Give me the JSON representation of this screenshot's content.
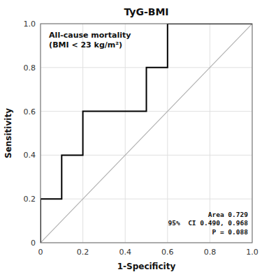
{
  "chart_data": {
    "type": "line",
    "title": "TyG-BMI",
    "x_label": "1-Specificity",
    "y_label": "Sensitivity",
    "series": [
      {
        "x": [
          0.0,
          1.0
        ],
        "values": [
          0.0,
          1.0
        ],
        "color": "#b0b0b0"
      },
      {
        "x": [
          0.0,
          0.0,
          0.1,
          0.1,
          0.2,
          0.2,
          0.5,
          0.5,
          0.6,
          0.6,
          1.0
        ],
        "values": [
          0.0,
          0.2,
          0.2,
          0.4,
          0.4,
          0.6,
          0.6,
          0.8,
          0.8,
          1.0,
          1.0
        ],
        "color": "#000000"
      }
    ],
    "annotations": [
      "All-cause mortality\n(BMI < 23 kg/m²)",
      "Area 0.729\n95%  CI 0.490, 0.968\nP = 0.088"
    ],
    "xlim": [
      0.0,
      1.0
    ],
    "ylim": [
      0.0,
      1.0
    ],
    "xticks": [
      0,
      0.2,
      0.4,
      0.6,
      0.8,
      {
        "value": 1.0,
        "label": "1.0"
      }
    ],
    "yticks": [
      0,
      0.2,
      0.4,
      0.6,
      0.8,
      {
        "value": 1.0,
        "label": "1.0"
      }
    ],
    "grid": true
  }
}
